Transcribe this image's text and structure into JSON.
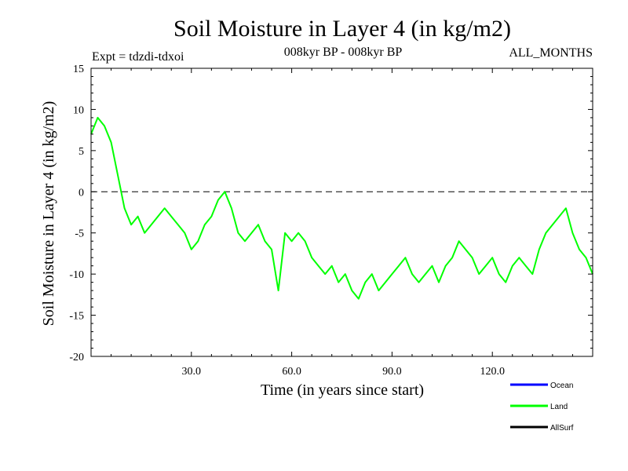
{
  "chart_data": {
    "type": "line",
    "title": "Soil Moisture in Layer 4 (in kg/m2)",
    "subtitle": "008kyr BP - 008kyr BP",
    "experiment": "Expt = tdzdi-tdxoi",
    "period": "ALL_MONTHS",
    "xlabel": "Time (in years since start)",
    "ylabel": "Soil Moisture in Layer 4 (in kg/m2)",
    "xlim": [
      0,
      150
    ],
    "ylim": [
      -20,
      15
    ],
    "x_ticks": [
      30,
      60,
      90,
      120
    ],
    "x_tick_labels": [
      "30.0",
      "60.0",
      "90.0",
      "120.0"
    ],
    "y_ticks": [
      15,
      10,
      5,
      0,
      -5,
      -10,
      -15,
      -20
    ],
    "y_tick_labels": [
      "15",
      "10",
      "5",
      "0",
      "-5",
      "-10",
      "-15",
      "-20"
    ],
    "zero_line": 0,
    "legend": [
      {
        "name": "Ocean",
        "color": "#0000ff"
      },
      {
        "name": "Land",
        "color": "#00ff00"
      },
      {
        "name": "AllSurf",
        "color": "#000000"
      }
    ],
    "series": [
      {
        "name": "Land",
        "color": "#00ff00",
        "x": [
          0,
          2,
          4,
          6,
          8,
          10,
          12,
          14,
          16,
          18,
          20,
          22,
          24,
          26,
          28,
          30,
          32,
          34,
          36,
          38,
          40,
          42,
          44,
          46,
          48,
          50,
          52,
          54,
          56,
          58,
          60,
          62,
          64,
          66,
          68,
          70,
          72,
          74,
          76,
          78,
          80,
          82,
          84,
          86,
          88,
          90,
          92,
          94,
          96,
          98,
          100,
          102,
          104,
          106,
          108,
          110,
          112,
          114,
          116,
          118,
          120,
          122,
          124,
          126,
          128,
          130,
          132,
          134,
          136,
          138,
          140,
          142,
          144,
          146,
          148,
          150
        ],
        "values": [
          7,
          9,
          8,
          6,
          2,
          -2,
          -4,
          -3,
          -5,
          -4,
          -3,
          -2,
          -3,
          -4,
          -5,
          -7,
          -6,
          -4,
          -3,
          -1,
          0,
          -2,
          -5,
          -6,
          -5,
          -4,
          -6,
          -7,
          -12,
          -5,
          -6,
          -5,
          -6,
          -8,
          -9,
          -10,
          -9,
          -11,
          -10,
          -12,
          -13,
          -11,
          -10,
          -12,
          -11,
          -10,
          -9,
          -8,
          -10,
          -11,
          -10,
          -9,
          -11,
          -9,
          -8,
          -6,
          -7,
          -8,
          -10,
          -9,
          -8,
          -10,
          -11,
          -9,
          -8,
          -9,
          -10,
          -7,
          -5,
          -4,
          -3,
          -2,
          -5,
          -7,
          -8,
          -10
        ]
      }
    ]
  }
}
